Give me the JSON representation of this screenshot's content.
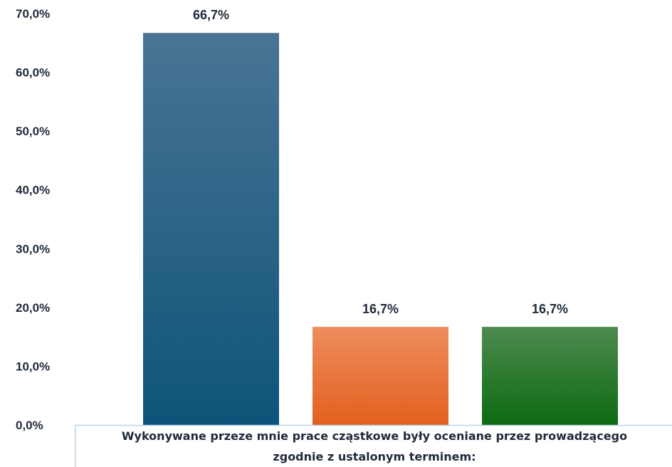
{
  "chart_data": {
    "type": "bar",
    "title": "",
    "xlabel": [
      "Wykonywane przeze mnie prace cząstkowe były oceniane przez prowadzącego",
      "zgodnie z ustalonym terminem:"
    ],
    "ylabel": "",
    "ylim": [
      0,
      70
    ],
    "yticks": [
      "0,0%",
      "10,0%",
      "20,0%",
      "30,0%",
      "40,0%",
      "50,0%",
      "60,0%",
      "70,0%"
    ],
    "grid": false,
    "legend": "none",
    "series": [
      {
        "value": 66.7,
        "label": "66,7%",
        "color_top": "#4a7494",
        "color_bottom": "#0d5479"
      },
      {
        "value": 16.7,
        "label": "16,7%",
        "color_top": "#ee8d5e",
        "color_bottom": "#e2601e"
      },
      {
        "value": 16.7,
        "label": "16,7%",
        "color_top": "#4e8a4f",
        "color_bottom": "#0c6a12"
      }
    ]
  }
}
